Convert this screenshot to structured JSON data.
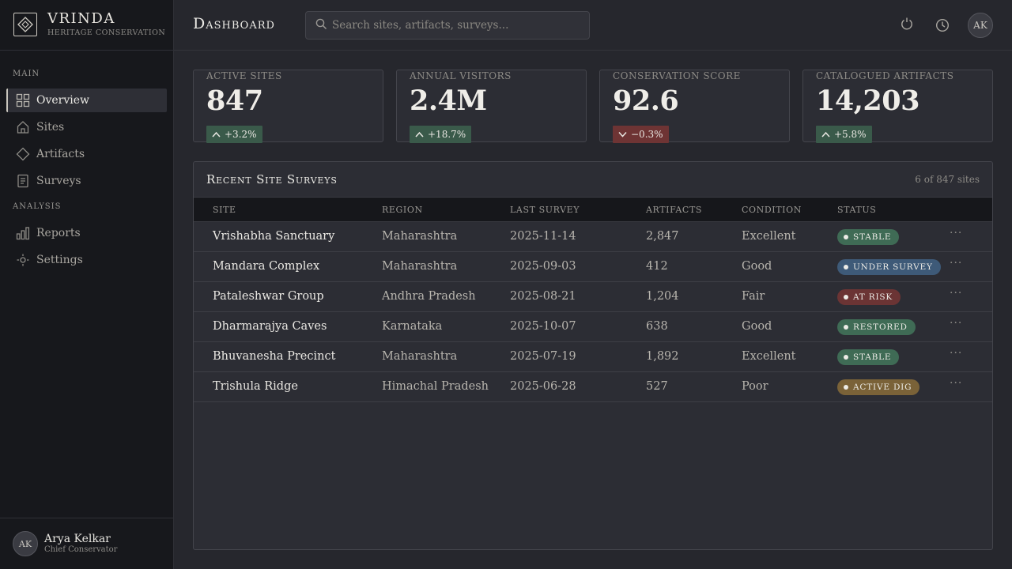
{
  "brand": {
    "name": "VRINDA",
    "subtitle": "Heritage Conservation"
  },
  "sidebar": {
    "sections": [
      {
        "heading": "Main"
      },
      {
        "heading": "Analysis"
      }
    ],
    "items": [
      {
        "label": "Overview",
        "icon": "grid-icon"
      },
      {
        "label": "Sites",
        "icon": "home-icon"
      },
      {
        "label": "Artifacts",
        "icon": "diamond-icon"
      },
      {
        "label": "Surveys",
        "icon": "document-icon"
      },
      {
        "label": "Reports",
        "icon": "bar-chart-icon"
      },
      {
        "label": "Settings",
        "icon": "gear-icon"
      }
    ],
    "active_item": "Overview"
  },
  "user": {
    "initials": "AK",
    "name": "Arya Kelkar",
    "role": "Chief Conservator"
  },
  "header": {
    "title": "Dashboard",
    "search_placeholder": "Search sites, artifacts, surveys...",
    "avatar_initials": "AK"
  },
  "kpis": [
    {
      "label": "Active Sites",
      "value": "847",
      "delta": "+3.2%",
      "direction": "up"
    },
    {
      "label": "Annual Visitors",
      "value": "2.4M",
      "delta": "+18.7%",
      "direction": "up"
    },
    {
      "label": "Conservation Score",
      "value": "92.6",
      "delta": "−0.3%",
      "direction": "down"
    },
    {
      "label": "Catalogued Artifacts",
      "value": "14,203",
      "delta": "+5.8%",
      "direction": "up"
    }
  ],
  "surveys": {
    "title": "Recent Site Surveys",
    "meta": "6 of 847 sites",
    "columns": [
      "Site",
      "Region",
      "Last Survey",
      "Artifacts",
      "Condition",
      "Status"
    ],
    "rows": [
      {
        "site": "Vrishabha Sanctuary",
        "region": "Maharashtra",
        "last_survey": "2025-11-14",
        "artifacts": "2,847",
        "condition": "Excellent",
        "status": "Stable",
        "status_color": "#3f6b55"
      },
      {
        "site": "Mandara Complex",
        "region": "Maharashtra",
        "last_survey": "2025-09-03",
        "artifacts": "412",
        "condition": "Good",
        "status": "Under Survey",
        "status_color": "#3e5a78"
      },
      {
        "site": "Pataleshwar Group",
        "region": "Andhra Pradesh",
        "last_survey": "2025-08-21",
        "artifacts": "1,204",
        "condition": "Fair",
        "status": "At Risk",
        "status_color": "#6b3434"
      },
      {
        "site": "Dharmarajya Caves",
        "region": "Karnataka",
        "last_survey": "2025-10-07",
        "artifacts": "638",
        "condition": "Good",
        "status": "Restored",
        "status_color": "#3f6b55"
      },
      {
        "site": "Bhuvanesha Precinct",
        "region": "Maharashtra",
        "last_survey": "2025-07-19",
        "artifacts": "1,892",
        "condition": "Excellent",
        "status": "Stable",
        "status_color": "#3f6b55"
      },
      {
        "site": "Trishula Ridge",
        "region": "Himachal Pradesh",
        "last_survey": "2025-06-28",
        "artifacts": "527",
        "condition": "Poor",
        "status": "Active Dig",
        "status_color": "#7a6238"
      }
    ],
    "row_action": "···"
  }
}
